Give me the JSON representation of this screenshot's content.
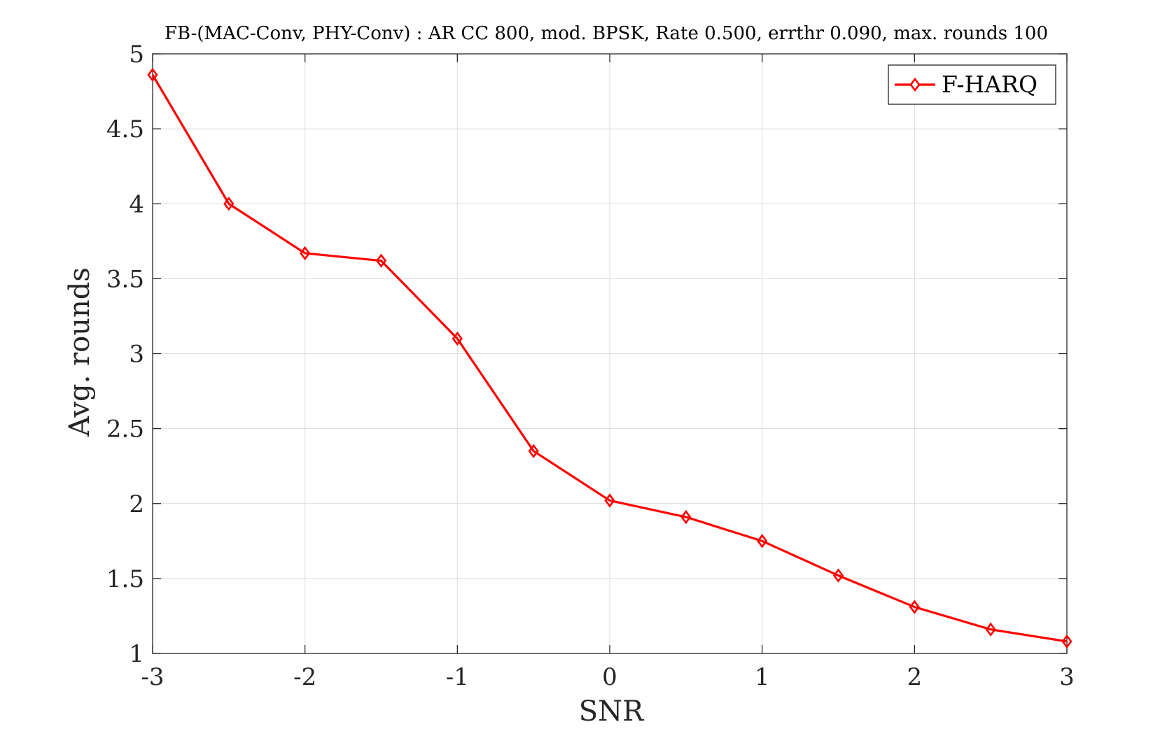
{
  "chart_data": {
    "type": "line",
    "title": "FB-(MAC-Conv, PHY-Conv) : AR CC 800, mod. BPSK, Rate 0.500, errthr 0.090, max. rounds 100",
    "xlabel": "SNR",
    "ylabel": "Avg. rounds",
    "xlim": [
      -3,
      3
    ],
    "ylim": [
      1,
      5
    ],
    "xticks": [
      -3,
      -2,
      -1,
      0,
      1,
      2,
      3
    ],
    "xtick_labels": [
      "-3",
      "-2",
      "-1",
      "0",
      "1",
      "2",
      "3"
    ],
    "yticks": [
      1,
      1.5,
      2,
      2.5,
      3,
      3.5,
      4,
      4.5,
      5
    ],
    "ytick_labels": [
      "1",
      "1.5",
      "2",
      "2.5",
      "3",
      "3.5",
      "4",
      "4.5",
      "5"
    ],
    "grid": true,
    "legend_position": "top-right",
    "series": [
      {
        "name": "F-HARQ",
        "color": "#ff0000",
        "marker": "diamond",
        "x": [
          -3,
          -2.5,
          -2,
          -1.5,
          -1,
          -0.5,
          0,
          0.5,
          1,
          1.5,
          2,
          2.5,
          3
        ],
        "values": [
          4.86,
          4.0,
          3.67,
          3.62,
          3.1,
          2.35,
          2.02,
          1.91,
          1.75,
          1.52,
          1.31,
          1.16,
          1.08
        ]
      }
    ]
  }
}
